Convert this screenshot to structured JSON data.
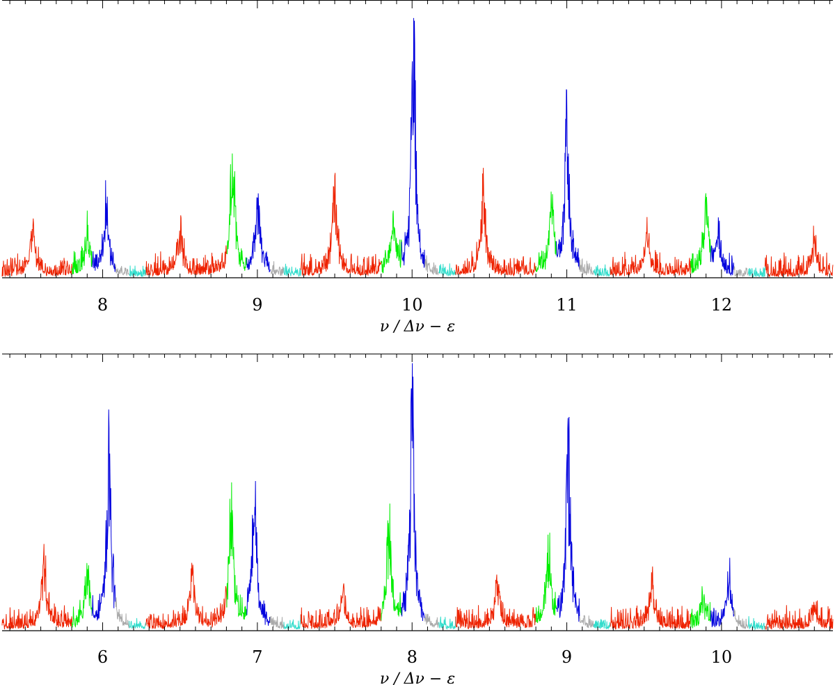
{
  "chart_data": [
    {
      "type": "line",
      "panel": "top",
      "xlabel": "ν / Δν − ε",
      "xlim": [
        7.35,
        12.72
      ],
      "ylim": [
        0,
        1.0
      ],
      "x_ticks": [
        8,
        9,
        10,
        11,
        12
      ],
      "x_tick_labels": [
        "8",
        "9",
        "10",
        "11",
        "12"
      ],
      "grid": false,
      "band_colors": {
        "l2_l0_red": "#ee2200",
        "l1_green": "#00ee00",
        "l0_blue": "#0000dd",
        "gray": "#aaaaaa",
        "cyan": "#33ddcc"
      },
      "peaks": [
        {
          "x": 7.55,
          "y": 0.2,
          "color": "#ee2200"
        },
        {
          "x": 7.9,
          "y": 0.2,
          "color": "#00ee00"
        },
        {
          "x": 8.02,
          "y": 0.33,
          "color": "#0000dd"
        },
        {
          "x": 8.5,
          "y": 0.22,
          "color": "#ee2200"
        },
        {
          "x": 8.84,
          "y": 0.57,
          "color": "#00ee00"
        },
        {
          "x": 9.0,
          "y": 0.35,
          "color": "#0000dd"
        },
        {
          "x": 9.5,
          "y": 0.41,
          "color": "#ee2200"
        },
        {
          "x": 9.88,
          "y": 0.22,
          "color": "#00ee00"
        },
        {
          "x": 10.01,
          "y": 1.0,
          "color": "#0000dd"
        },
        {
          "x": 10.46,
          "y": 0.37,
          "color": "#ee2200"
        },
        {
          "x": 10.9,
          "y": 0.31,
          "color": "#00ee00"
        },
        {
          "x": 11.0,
          "y": 0.68,
          "color": "#0000dd"
        },
        {
          "x": 11.52,
          "y": 0.22,
          "color": "#ee2200"
        },
        {
          "x": 11.9,
          "y": 0.34,
          "color": "#00ee00"
        },
        {
          "x": 11.98,
          "y": 0.17,
          "color": "#0000dd"
        },
        {
          "x": 12.6,
          "y": 0.14,
          "color": "#ee2200"
        }
      ]
    },
    {
      "type": "line",
      "panel": "bottom",
      "xlabel": "ν / Δν − ε",
      "xlim": [
        5.35,
        10.72
      ],
      "ylim": [
        0,
        1.0
      ],
      "x_ticks": [
        6,
        7,
        8,
        9,
        10
      ],
      "x_tick_labels": [
        "6",
        "7",
        "8",
        "9",
        "10"
      ],
      "grid": false,
      "band_colors": {
        "l2_l0_red": "#ee2200",
        "l1_green": "#00ee00",
        "l0_blue": "#0000dd",
        "gray": "#aaaaaa",
        "cyan": "#33ddcc"
      },
      "peaks": [
        {
          "x": 5.62,
          "y": 0.33,
          "color": "#ee2200"
        },
        {
          "x": 5.9,
          "y": 0.23,
          "color": "#00ee00"
        },
        {
          "x": 6.04,
          "y": 0.78,
          "color": "#0000dd"
        },
        {
          "x": 6.58,
          "y": 0.27,
          "color": "#ee2200"
        },
        {
          "x": 6.83,
          "y": 0.55,
          "color": "#00ee00"
        },
        {
          "x": 6.98,
          "y": 0.63,
          "color": "#0000dd"
        },
        {
          "x": 7.55,
          "y": 0.16,
          "color": "#ee2200"
        },
        {
          "x": 7.85,
          "y": 0.48,
          "color": "#00ee00"
        },
        {
          "x": 8.0,
          "y": 1.0,
          "color": "#0000dd"
        },
        {
          "x": 8.55,
          "y": 0.2,
          "color": "#ee2200"
        },
        {
          "x": 8.88,
          "y": 0.37,
          "color": "#00ee00"
        },
        {
          "x": 9.01,
          "y": 0.82,
          "color": "#0000dd"
        },
        {
          "x": 9.55,
          "y": 0.2,
          "color": "#ee2200"
        },
        {
          "x": 9.88,
          "y": 0.13,
          "color": "#00ee00"
        },
        {
          "x": 10.05,
          "y": 0.22,
          "color": "#0000dd"
        },
        {
          "x": 10.6,
          "y": 0.11,
          "color": "#ee2200"
        }
      ]
    }
  ]
}
